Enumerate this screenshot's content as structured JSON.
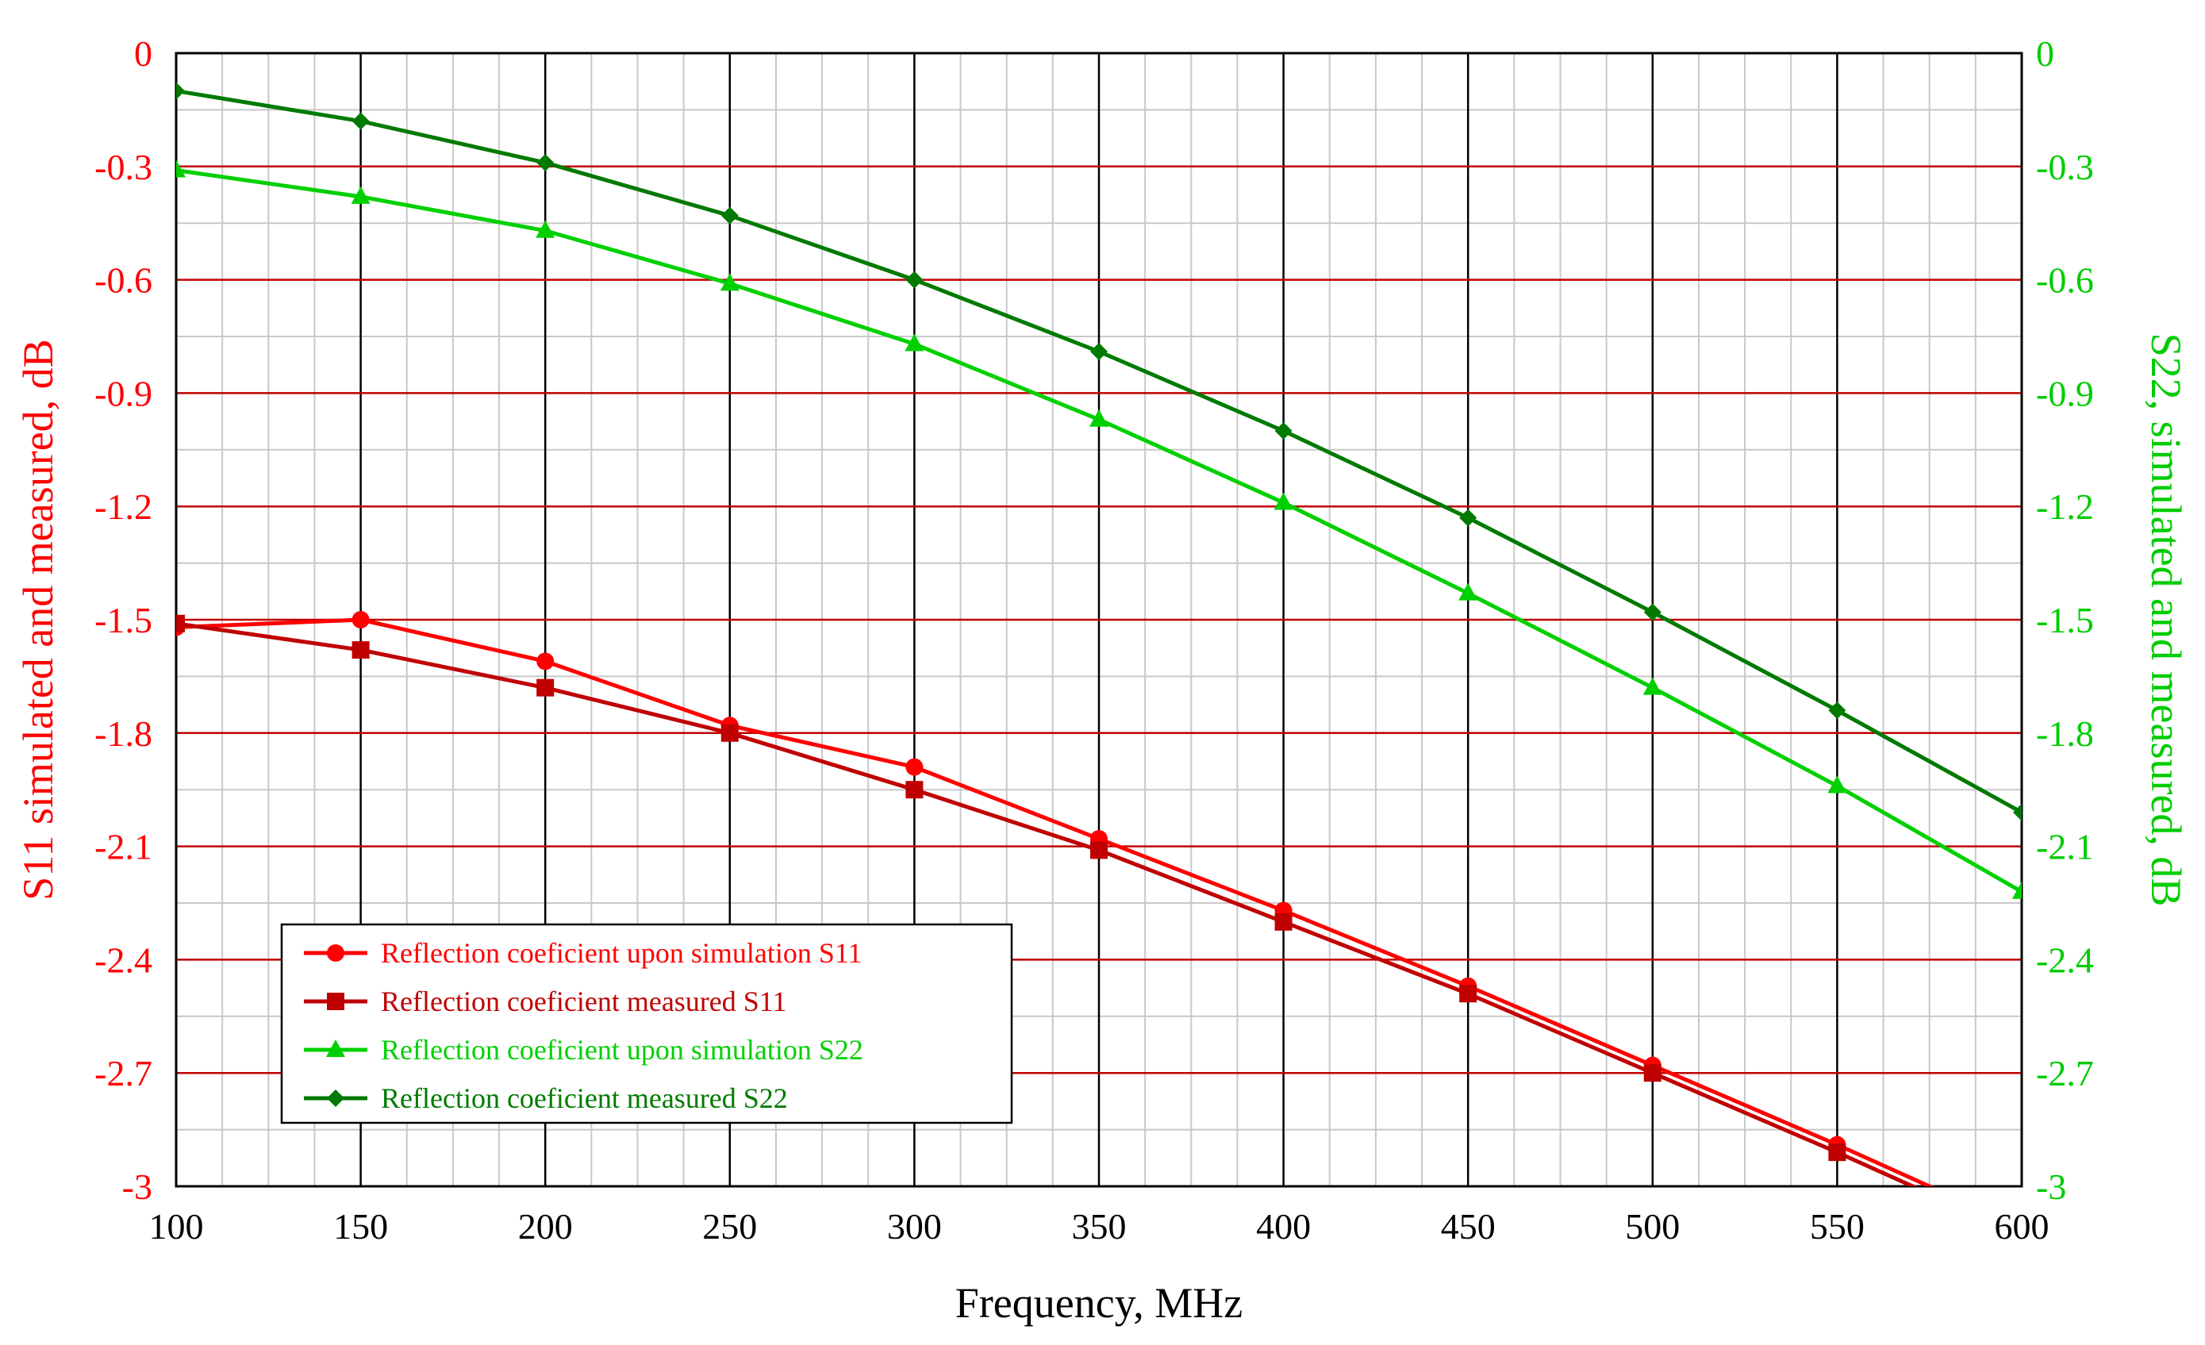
{
  "chart_data": {
    "type": "line",
    "xlabel": "Frequency, MHz",
    "ylabel_left": "S11 simulated and measured, dB",
    "ylabel_right": "S22, simulated and measured, dB",
    "xlim": [
      100,
      600
    ],
    "ylim": [
      -3,
      0
    ],
    "x_ticks": [
      "100",
      "150",
      "200",
      "250",
      "300",
      "350",
      "400",
      "450",
      "500",
      "550",
      "600"
    ],
    "y_ticks_left": [
      "0",
      "-0.3",
      "-0.6",
      "-0.9",
      "-1.2",
      "-1.5",
      "-1.8",
      "-2.1",
      "-2.4",
      "-2.7",
      "-3"
    ],
    "y_ticks_right": [
      "0",
      "-0.3",
      "-0.6",
      "-0.9",
      "-1.2",
      "-1.5",
      "-1.8",
      "-2.1",
      "-2.4",
      "-2.7",
      "-3"
    ],
    "grid": "major and minor",
    "legend_position": "bottom-left",
    "colors": {
      "left_axis": "#ff0000",
      "right_axis": "#00cc00",
      "major_grid": "#000000",
      "minor_grid": "#c8c8c8",
      "horizontal_grid": "#c00000"
    },
    "series": [
      {
        "name": "Reflection coeficient upon simulation S11",
        "color": "#ff0000",
        "marker": "circle",
        "x": [
          100,
          150,
          200,
          250,
          300,
          350,
          400,
          450,
          500,
          550,
          600
        ],
        "y": [
          -1.52,
          -1.5,
          -1.61,
          -1.78,
          -1.89,
          -2.08,
          -2.27,
          -2.47,
          -2.68,
          -2.89,
          -3.11
        ]
      },
      {
        "name": "Reflection coeficient measured S11",
        "color": "#c00000",
        "marker": "square",
        "x": [
          100,
          150,
          200,
          250,
          300,
          350,
          400,
          450,
          500,
          550,
          600
        ],
        "y": [
          -1.51,
          -1.58,
          -1.68,
          -1.8,
          -1.95,
          -2.11,
          -2.3,
          -2.49,
          -2.7,
          -2.91,
          -3.13
        ]
      },
      {
        "name": "Reflection coeficient upon simulation S22",
        "color": "#00d000",
        "marker": "triangle",
        "x": [
          100,
          150,
          200,
          250,
          300,
          350,
          400,
          450,
          500,
          550,
          600
        ],
        "y": [
          -0.31,
          -0.38,
          -0.47,
          -0.61,
          -0.77,
          -0.97,
          -1.19,
          -1.43,
          -1.68,
          -1.94,
          -2.22
        ]
      },
      {
        "name": "Reflection coeficient measured S22",
        "color": "#007a00",
        "marker": "diamond",
        "x": [
          100,
          150,
          200,
          250,
          300,
          350,
          400,
          450,
          500,
          550,
          600
        ],
        "y": [
          -0.1,
          -0.18,
          -0.29,
          -0.43,
          -0.6,
          -0.79,
          -1.0,
          -1.23,
          -1.48,
          -1.74,
          -2.01
        ]
      }
    ]
  }
}
